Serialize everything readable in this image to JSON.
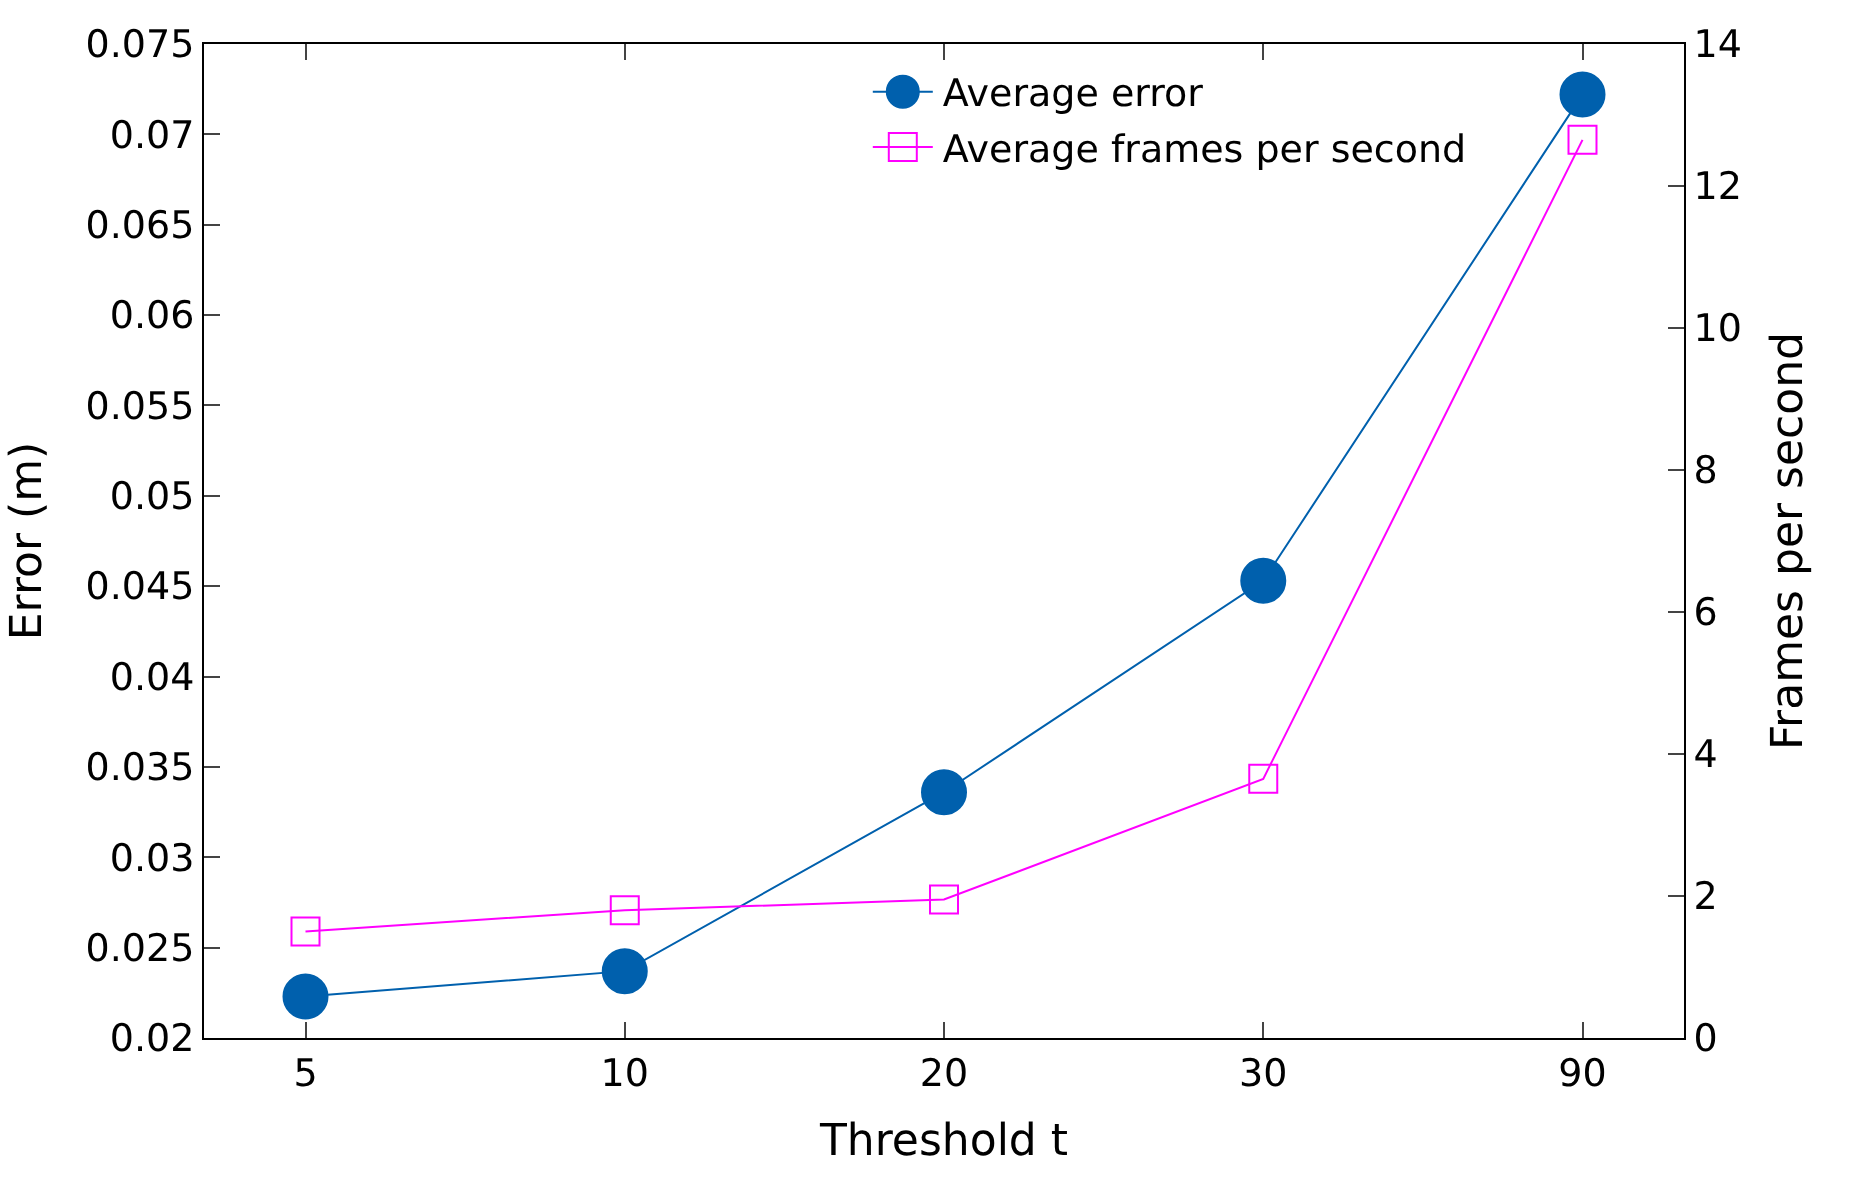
{
  "chart_data": {
    "type": "line",
    "xlabel": "Threshold t",
    "ylabel": "Error (m)",
    "y2label": "Frames per second",
    "categories": [
      "5",
      "10",
      "20",
      "30",
      "90"
    ],
    "series": [
      {
        "name": "Average error",
        "color": "#0060ad",
        "marker": "circle",
        "values": [
          0.0223,
          0.0237,
          0.0336,
          0.0453,
          0.0722
        ]
      },
      {
        "name": "Average frames per second",
        "color": "#ff00ff",
        "marker": "square",
        "axis": "y2",
        "values": [
          1.5,
          1.8,
          1.95,
          3.65,
          12.65
        ]
      }
    ],
    "ylim": [
      0.02,
      0.075
    ],
    "yticks": [
      0.02,
      0.025,
      0.03,
      0.035,
      0.04,
      0.045,
      0.05,
      0.055,
      0.06,
      0.065,
      0.07,
      0.075
    ],
    "y2lim": [
      0,
      14
    ],
    "y2ticks": [
      0,
      2,
      4,
      6,
      8,
      10,
      12,
      14
    ],
    "legend": "top right",
    "line_style": "solid"
  }
}
